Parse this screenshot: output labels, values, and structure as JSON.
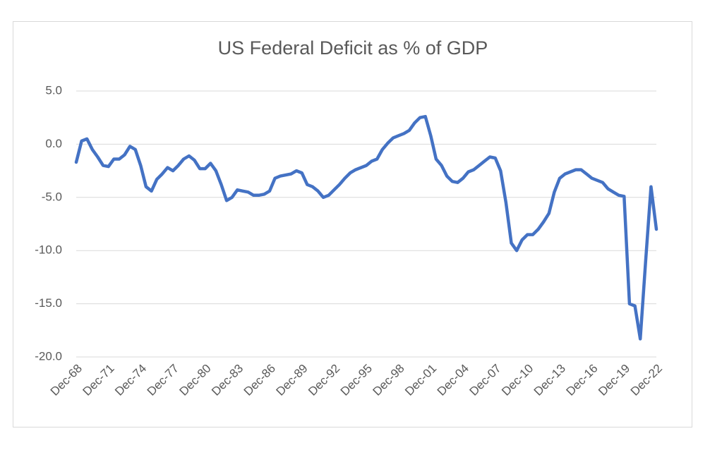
{
  "chart_data": {
    "type": "line",
    "title": "US Federal Deficit as % of GDP",
    "categories": [
      "Dec-68",
      null,
      null,
      null,
      null,
      null,
      "Dec-71",
      null,
      null,
      null,
      null,
      null,
      "Dec-74",
      null,
      null,
      null,
      null,
      null,
      "Dec-77",
      null,
      null,
      null,
      null,
      null,
      "Dec-80",
      null,
      null,
      null,
      null,
      null,
      "Dec-83",
      null,
      null,
      null,
      null,
      null,
      "Dec-86",
      null,
      null,
      null,
      null,
      null,
      "Dec-89",
      null,
      null,
      null,
      null,
      null,
      "Dec-92",
      null,
      null,
      null,
      null,
      null,
      "Dec-95",
      null,
      null,
      null,
      null,
      null,
      "Dec-98",
      null,
      null,
      null,
      null,
      null,
      "Dec-01",
      null,
      null,
      null,
      null,
      null,
      "Dec-04",
      null,
      null,
      null,
      null,
      null,
      "Dec-07",
      null,
      null,
      null,
      null,
      null,
      "Dec-10",
      null,
      null,
      null,
      null,
      null,
      "Dec-13",
      null,
      null,
      null,
      null,
      null,
      "Dec-16",
      null,
      null,
      null,
      null,
      null,
      "Dec-19",
      null,
      null,
      null,
      null,
      null,
      "Dec-22"
    ],
    "series": [
      {
        "color": "#4472c4",
        "values": [
          -1.7,
          0.3,
          0.5,
          -0.5,
          -1.2,
          -2.0,
          -2.1,
          -1.4,
          -1.4,
          -1.0,
          -0.2,
          -0.5,
          -2.0,
          -4.0,
          -4.4,
          -3.3,
          -2.8,
          -2.2,
          -2.5,
          -2.0,
          -1.4,
          -1.1,
          -1.5,
          -2.3,
          -2.3,
          -1.8,
          -2.5,
          -3.8,
          -5.3,
          -5.0,
          -4.3,
          -4.4,
          -4.5,
          -4.8,
          -4.8,
          -4.7,
          -4.4,
          -3.2,
          -3.0,
          -2.9,
          -2.8,
          -2.5,
          -2.7,
          -3.8,
          -4.0,
          -4.4,
          -5.0,
          -4.8,
          -4.3,
          -3.8,
          -3.2,
          -2.7,
          -2.4,
          -2.2,
          -2.0,
          -1.6,
          -1.4,
          -0.5,
          0.1,
          0.6,
          0.8,
          1.0,
          1.3,
          2.0,
          2.5,
          2.6,
          0.8,
          -1.4,
          -2.0,
          -3.0,
          -3.5,
          -3.6,
          -3.2,
          -2.6,
          -2.4,
          -2.0,
          -1.6,
          -1.2,
          -1.3,
          -2.5,
          -5.5,
          -9.3,
          -10.0,
          -9.0,
          -8.5,
          -8.5,
          -8.0,
          -7.3,
          -6.5,
          -4.5,
          -3.2,
          -2.8,
          -2.6,
          -2.4,
          -2.4,
          -2.8,
          -3.2,
          -3.4,
          -3.6,
          -4.2,
          -4.5,
          -4.8,
          -4.9,
          -15.0,
          -15.2,
          -18.3,
          -11.0,
          -4.0,
          -8.0
        ]
      }
    ],
    "ylim": [
      -20,
      5
    ],
    "yticks": [
      {
        "value": 5,
        "label": "5.0"
      },
      {
        "value": 0,
        "label": "0.0"
      },
      {
        "value": -5,
        "label": "-5.0"
      },
      {
        "value": -10,
        "label": "-10.0"
      },
      {
        "value": -15,
        "label": "-15.0"
      },
      {
        "value": -20,
        "label": "-20.0"
      }
    ],
    "grid": true
  }
}
